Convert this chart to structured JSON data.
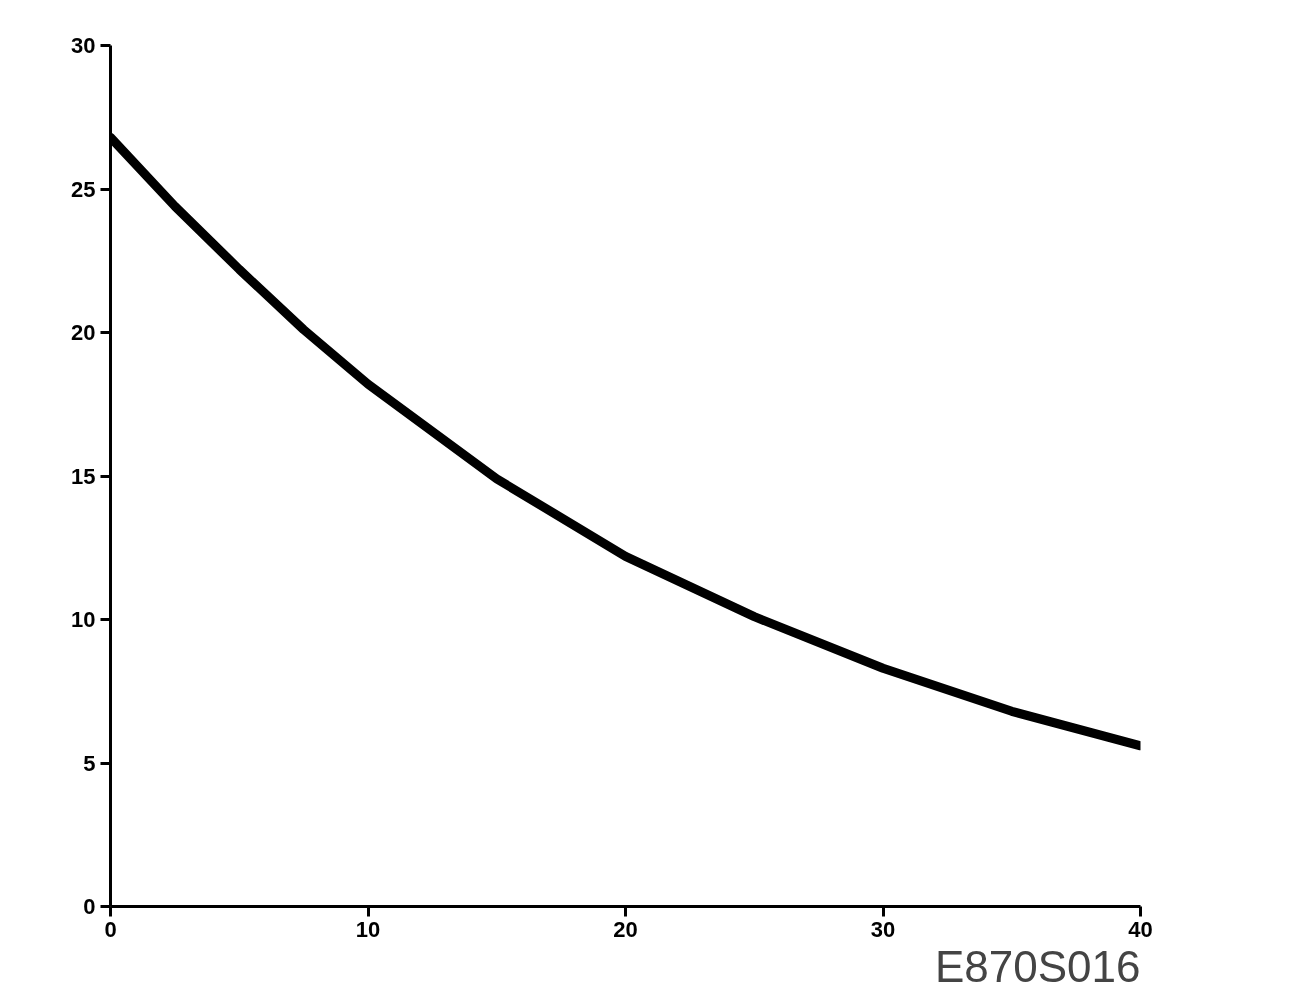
{
  "chart_data": {
    "type": "line",
    "x": [
      0,
      2.5,
      5,
      7.5,
      10,
      15,
      20,
      25,
      30,
      35,
      40
    ],
    "series": [
      {
        "color": "#000000",
        "values": [
          26.8,
          24.4,
          22.2,
          20.1,
          18.2,
          14.9,
          12.2,
          10.1,
          8.3,
          6.8,
          5.6
        ]
      }
    ],
    "xlim": [
      0,
      40
    ],
    "xticks": [
      0,
      10,
      20,
      30,
      40
    ],
    "ylim": [
      0,
      30
    ],
    "yticks": [
      0,
      5,
      10,
      15,
      20,
      25,
      30
    ],
    "grid": false,
    "marker": "none",
    "line_style": "solid",
    "annotations": [
      "E870S016"
    ]
  }
}
